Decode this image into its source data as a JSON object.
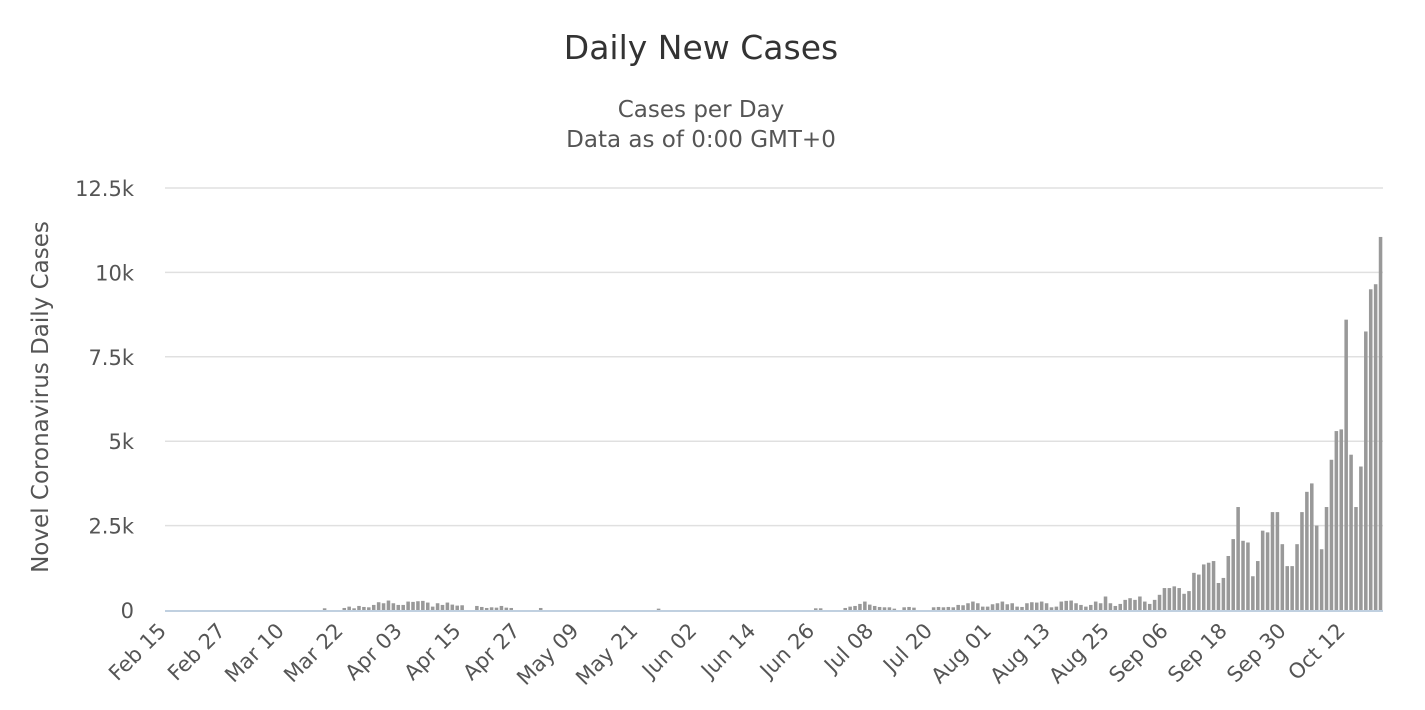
{
  "chart_data": {
    "type": "bar",
    "title": "Daily New Cases",
    "subtitle": [
      "Cases per Day",
      "Data as of 0:00 GMT+0"
    ],
    "xlabel": "",
    "ylabel": "Novel Coronavirus Daily Cases",
    "ylim": [
      0,
      12500
    ],
    "yticks": [
      0,
      2500,
      5000,
      7500,
      10000,
      12500
    ],
    "ytick_labels": [
      "0",
      "2.5k",
      "5k",
      "7.5k",
      "10k",
      "12.5k"
    ],
    "xtick_labels": [
      "Feb 15",
      "Feb 27",
      "Mar 10",
      "Mar 22",
      "Apr 03",
      "Apr 15",
      "Apr 27",
      "May 09",
      "May 21",
      "Jun 02",
      "Jun 14",
      "Jun 26",
      "Jul 08",
      "Jul 20",
      "Aug 01",
      "Aug 13",
      "Aug 25",
      "Sep 06",
      "Sep 18",
      "Sep 30",
      "Oct 12"
    ],
    "grid": true,
    "bar_color": "#999999",
    "x_start": "Feb 15",
    "x_end": "Oct 16",
    "values": [
      0,
      0,
      0,
      0,
      0,
      0,
      0,
      0,
      0,
      0,
      0,
      0,
      0,
      0,
      0,
      0,
      0,
      0,
      0,
      0,
      0,
      0,
      0,
      0,
      0,
      0,
      0,
      0,
      0,
      0,
      0,
      0,
      50,
      0,
      0,
      0,
      60,
      100,
      50,
      120,
      90,
      80,
      150,
      230,
      200,
      280,
      200,
      150,
      150,
      250,
      240,
      260,
      270,
      220,
      100,
      200,
      150,
      220,
      160,
      130,
      140,
      0,
      0,
      120,
      90,
      60,
      80,
      70,
      120,
      70,
      60,
      0,
      0,
      0,
      0,
      0,
      60,
      0,
      0,
      0,
      0,
      0,
      0,
      0,
      0,
      0,
      0,
      0,
      0,
      0,
      0,
      0,
      0,
      0,
      0,
      0,
      0,
      0,
      0,
      0,
      40,
      0,
      0,
      0,
      0,
      0,
      0,
      0,
      0,
      0,
      0,
      0,
      0,
      0,
      0,
      0,
      0,
      0,
      0,
      0,
      0,
      0,
      0,
      0,
      0,
      0,
      0,
      0,
      0,
      0,
      0,
      0,
      50,
      50,
      0,
      0,
      0,
      0,
      60,
      100,
      120,
      180,
      250,
      160,
      120,
      90,
      80,
      80,
      40,
      0,
      80,
      90,
      70,
      0,
      0,
      0,
      80,
      90,
      80,
      90,
      80,
      150,
      140,
      200,
      250,
      200,
      100,
      100,
      170,
      200,
      250,
      170,
      200,
      100,
      90,
      200,
      230,
      220,
      250,
      200,
      80,
      100,
      250,
      270,
      280,
      200,
      150,
      100,
      150,
      250,
      200,
      400,
      200,
      120,
      180,
      300,
      350,
      300,
      400,
      250,
      180,
      300,
      450,
      650,
      650,
      700,
      650,
      480,
      560,
      1100,
      1050,
      1350,
      1400,
      1450,
      800,
      950,
      1600,
      2100,
      3050,
      2050,
      2000,
      1000,
      1450,
      2350,
      2300,
      2900,
      2900,
      1950,
      1300,
      1300,
      1950,
      2900,
      3500,
      3750,
      2500,
      1800,
      3050,
      4450,
      5300,
      5350,
      8600,
      4600,
      3050,
      4250,
      8250,
      9500,
      9650,
      11050
    ]
  }
}
